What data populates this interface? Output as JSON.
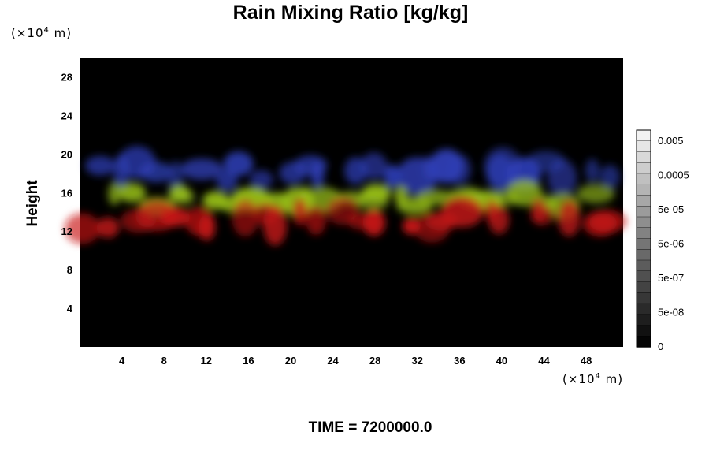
{
  "title_parts": {
    "main": "Rain Mixing Ratio",
    "units": "[kg/kg]"
  },
  "x_unit": {
    "prefix": "(×10",
    "exp": "4",
    "suffix": " m)"
  },
  "y_unit": {
    "prefix": "(×10",
    "exp": "4",
    "suffix": " m)"
  },
  "time_label": "TIME = 7200000.0",
  "colors": {
    "background": "#000000",
    "upper_band": "#2f3fb8",
    "middle_band": "#9ac21a",
    "lower_band": "#c81616"
  },
  "chart_data": {
    "type": "heatmap",
    "title": "Rain Mixing Ratio [kg/kg]",
    "xlabel": "",
    "ylabel": "Height",
    "xlim": [
      0,
      51.5
    ],
    "ylim": [
      0,
      30
    ],
    "x_ticks": [
      4,
      8,
      12,
      16,
      20,
      24,
      28,
      32,
      36,
      40,
      44,
      48
    ],
    "y_ticks": [
      4,
      8,
      12,
      16,
      20,
      24,
      28
    ],
    "bands": [
      {
        "color": "upper_band",
        "y_range": [
          16.5,
          20
        ],
        "x_range": [
          1,
          51.5
        ]
      },
      {
        "color": "middle_band",
        "y_range": [
          14,
          16.5
        ],
        "x_range": [
          3,
          49
        ]
      },
      {
        "color": "lower_band",
        "y_range": [
          11.5,
          15
        ],
        "x_range": [
          0,
          51.5
        ]
      }
    ],
    "colorbar": {
      "scale": "log",
      "labels": [
        "0.005",
        "0.0005",
        "5e-05",
        "5e-06",
        "5e-07",
        "5e-08",
        "0"
      ],
      "num_steps": 20
    }
  }
}
